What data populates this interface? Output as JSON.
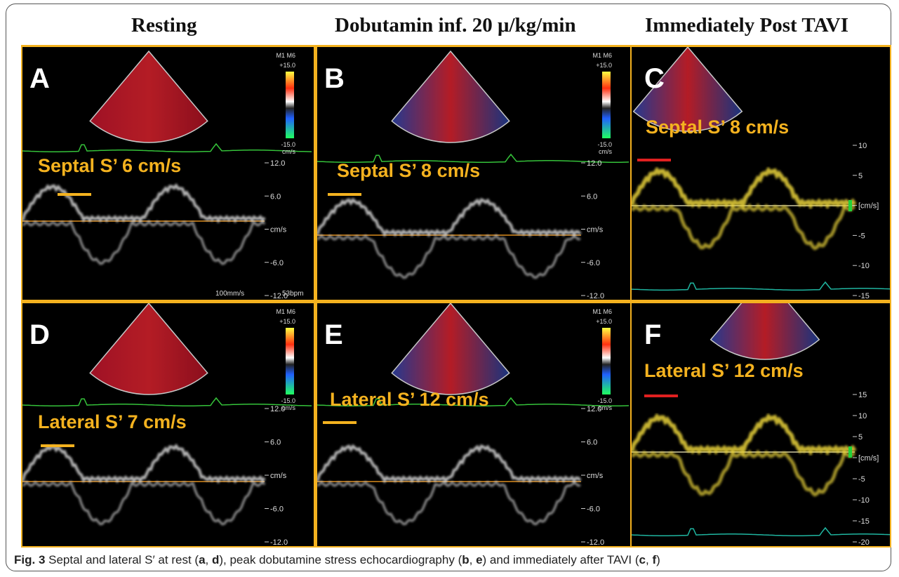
{
  "headers": [
    "Resting",
    "Dobutamin inf. 20 μ/kg/min",
    "Immediately Post TAVI"
  ],
  "panels": [
    {
      "letter": "A",
      "measurement": "Septal S’ 6 cm/s",
      "scale": [
        "12.0",
        "6.0",
        "cm/s",
        "-6.0",
        "-12.0"
      ],
      "colorbar": [
        "M1 M6",
        "+15.0",
        "-15.0",
        "cm/s"
      ],
      "footer": [
        "100mm/s",
        "53bpm"
      ]
    },
    {
      "letter": "B",
      "measurement": "Septal S’ 8 cm/s",
      "scale": [
        "12.0",
        "6.0",
        "cm/s",
        "-6.0",
        "-12.0"
      ],
      "colorbar": [
        "M1 M6",
        "+15.0",
        "-15.0",
        "cm/s"
      ]
    },
    {
      "letter": "C",
      "measurement": "Septal S’ 8 cm/s",
      "scale": [
        "10",
        "5",
        "[cm/s]",
        "-5",
        "-10",
        "-15"
      ]
    },
    {
      "letter": "D",
      "measurement": "Lateral S’ 7 cm/s",
      "scale": [
        "12.0",
        "6.0",
        "cm/s",
        "-6.0",
        "-12.0"
      ],
      "colorbar": [
        "M1 M6",
        "+15.0",
        "-15.0",
        "cm/s"
      ]
    },
    {
      "letter": "E",
      "measurement": "Lateral S’ 12 cm/s",
      "scale": [
        "12.0",
        "6.0",
        "cm/s",
        "-6.0",
        "-12.0"
      ],
      "colorbar": [
        "M1 M6",
        "+15.0",
        "-15.0",
        "cm/s"
      ]
    },
    {
      "letter": "F",
      "measurement": "Lateral S’ 12 cm/s",
      "scale": [
        "15",
        "10",
        "5",
        "[cm/s]",
        "-5",
        "-10",
        "-15",
        "-20"
      ]
    }
  ],
  "caption": {
    "label": "Fig. 3",
    "segments": [
      "Septal and lateral S′ at rest (",
      "a",
      ", ",
      "d",
      "), peak dobutamine stress echocardiography (",
      "b",
      ", ",
      "e",
      ") and immediately after TAVI (",
      "c",
      ", ",
      "f",
      ")"
    ]
  }
}
